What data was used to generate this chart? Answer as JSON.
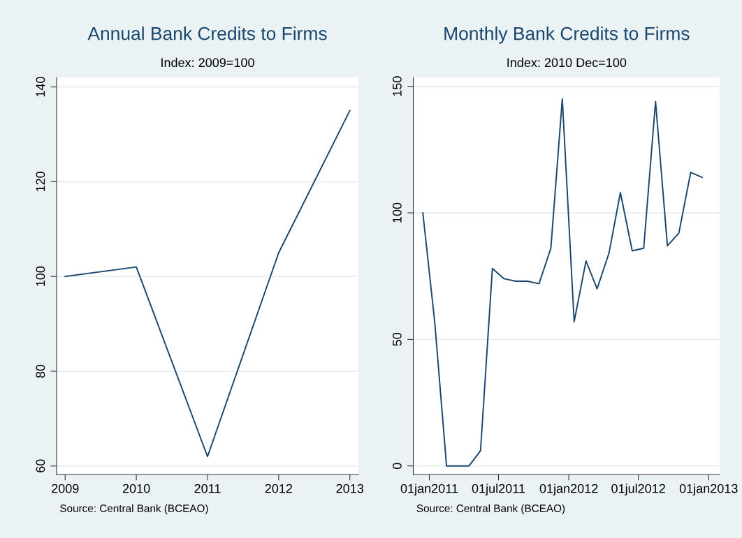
{
  "chart_data": [
    {
      "type": "line",
      "title": "Annual Bank Credits to Firms",
      "subtitle": "Index: 2009=100",
      "x": [
        2009,
        2010,
        2011,
        2012,
        2013
      ],
      "series": [
        {
          "color": "#1a476f",
          "values": [
            100,
            102,
            62,
            105,
            135
          ]
        }
      ],
      "xlim": [
        2008.88,
        2013.12
      ],
      "xticks": [
        2009,
        2010,
        2011,
        2012,
        2013
      ],
      "ylim": [
        58.2,
        142
      ],
      "yticks": [
        60,
        80,
        100,
        120,
        140
      ],
      "grid": "y",
      "annotations": [
        "Source: Central Bank (BCEAO)"
      ]
    },
    {
      "type": "line",
      "title": "Monthly Bank Credits to Firms",
      "subtitle": "Index: 2010 Dec=100",
      "x": [
        "2010-12-15",
        "2011-01-15",
        "2011-02-15",
        "2011-03-15",
        "2011-04-15",
        "2011-05-15",
        "2011-06-15",
        "2011-07-15",
        "2011-08-15",
        "2011-09-15",
        "2011-10-15",
        "2011-11-15",
        "2011-12-15",
        "2012-01-15",
        "2012-02-15",
        "2012-03-15",
        "2012-04-15",
        "2012-05-15",
        "2012-06-15",
        "2012-07-15",
        "2012-08-15",
        "2012-09-15",
        "2012-10-15",
        "2012-11-15",
        "2012-12-15"
      ],
      "series": [
        {
          "color": "#1a476f",
          "values": [
            100,
            57,
            0,
            0,
            0,
            6,
            78,
            74,
            73,
            73,
            72,
            86,
            145,
            57,
            81,
            70,
            84,
            108,
            85,
            86,
            144,
            87,
            92,
            116,
            114
          ]
        }
      ],
      "xlim": [
        "2010-11-20",
        "2013-01-30"
      ],
      "xticks": [
        {
          "value": "2011-01-01",
          "label": "01jan2011"
        },
        {
          "value": "2011-07-01",
          "label": "01jul2011"
        },
        {
          "value": "2012-01-01",
          "label": "01jan2012"
        },
        {
          "value": "2012-07-01",
          "label": "01jul2012"
        },
        {
          "value": "2013-01-01",
          "label": "01jan2013"
        }
      ],
      "ylim": [
        -3.4,
        153.5
      ],
      "yticks": [
        0,
        50,
        100,
        150
      ],
      "grid": "y",
      "annotations": [
        "Source: Central Bank (BCEAO)"
      ]
    }
  ]
}
